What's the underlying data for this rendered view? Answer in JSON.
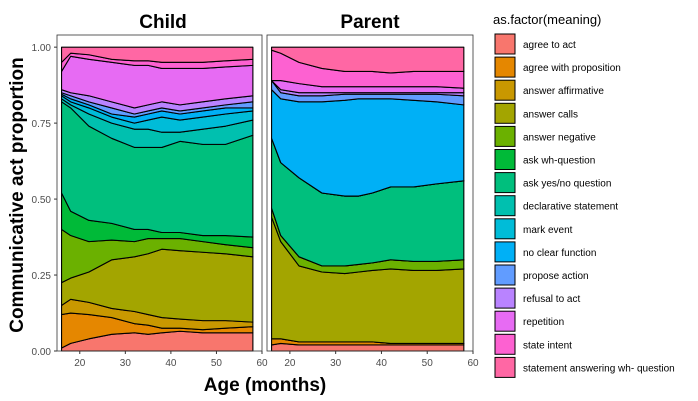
{
  "chart_data": {
    "type": "area",
    "stacked": true,
    "normalized": true,
    "facets": [
      "Child",
      "Parent"
    ],
    "xlabel": "Age (months)",
    "ylabel": "Communicative act proportion",
    "xlim": [
      15,
      60
    ],
    "ylim": [
      0,
      1.04
    ],
    "xticks": [
      20,
      30,
      40,
      50,
      60
    ],
    "yticks": [
      0.0,
      0.25,
      0.5,
      0.75,
      1.0
    ],
    "ytick_labels": [
      "0.00",
      "0.25",
      "0.50",
      "0.75",
      "1.00"
    ],
    "legend_title": "as.factor(meaning)",
    "legend_position": "right",
    "grid": false,
    "categories": [
      {
        "name": "agree to act",
        "color": "#F8766D"
      },
      {
        "name": "agree with proposition",
        "color": "#E58700"
      },
      {
        "name": "answer affirmative",
        "color": "#C99800"
      },
      {
        "name": "answer calls",
        "color": "#A3A500"
      },
      {
        "name": "answer negative",
        "color": "#6BB100"
      },
      {
        "name": "ask wh-question",
        "color": "#00BA38"
      },
      {
        "name": "ask yes/no question",
        "color": "#00BF7D"
      },
      {
        "name": "declarative statement",
        "color": "#00C0AF"
      },
      {
        "name": "mark event",
        "color": "#00BCD8"
      },
      {
        "name": "no clear function",
        "color": "#00B0F6"
      },
      {
        "name": "propose action",
        "color": "#619CFF"
      },
      {
        "name": "refusal to act",
        "color": "#B983FF"
      },
      {
        "name": "repetition",
        "color": "#E76BF3"
      },
      {
        "name": "state intent",
        "color": "#FD61D1"
      },
      {
        "name": "statement answering wh- question",
        "color": "#FF67A4"
      }
    ],
    "x": [
      16,
      18,
      22,
      27,
      32,
      35,
      38,
      42,
      47,
      52,
      58
    ],
    "panels": [
      {
        "facet": "Child",
        "boundaries": [
          [
            0.01,
            0.02,
            0.03,
            0.03,
            0.035,
            0.035,
            0.035,
            0.04,
            0.035,
            0.04,
            0.04
          ],
          [
            0.01,
            0.025,
            0.04,
            0.055,
            0.06,
            0.055,
            0.06,
            0.065,
            0.06,
            0.06,
            0.06
          ],
          [
            0.12,
            0.125,
            0.12,
            0.11,
            0.09,
            0.085,
            0.075,
            0.075,
            0.07,
            0.075,
            0.08
          ],
          [
            0.15,
            0.17,
            0.16,
            0.14,
            0.13,
            0.12,
            0.11,
            0.105,
            0.1,
            0.1,
            0.095
          ],
          [
            0.225,
            0.24,
            0.26,
            0.3,
            0.31,
            0.32,
            0.335,
            0.33,
            0.325,
            0.32,
            0.31
          ],
          [
            0.4,
            0.38,
            0.36,
            0.365,
            0.36,
            0.37,
            0.37,
            0.37,
            0.36,
            0.35,
            0.34
          ],
          [
            0.52,
            0.46,
            0.43,
            0.42,
            0.4,
            0.4,
            0.39,
            0.39,
            0.38,
            0.38,
            0.375
          ],
          [
            0.82,
            0.8,
            0.74,
            0.7,
            0.67,
            0.67,
            0.67,
            0.69,
            0.68,
            0.68,
            0.71
          ],
          [
            0.83,
            0.81,
            0.78,
            0.75,
            0.73,
            0.73,
            0.72,
            0.72,
            0.73,
            0.74,
            0.76
          ],
          [
            0.84,
            0.82,
            0.8,
            0.77,
            0.75,
            0.76,
            0.77,
            0.76,
            0.77,
            0.78,
            0.79
          ],
          [
            0.845,
            0.83,
            0.81,
            0.78,
            0.77,
            0.78,
            0.79,
            0.78,
            0.79,
            0.8,
            0.8
          ],
          [
            0.85,
            0.84,
            0.82,
            0.8,
            0.78,
            0.79,
            0.8,
            0.79,
            0.8,
            0.81,
            0.82
          ],
          [
            0.86,
            0.85,
            0.84,
            0.82,
            0.8,
            0.81,
            0.82,
            0.81,
            0.82,
            0.83,
            0.84
          ],
          [
            0.92,
            0.97,
            0.96,
            0.95,
            0.94,
            0.94,
            0.93,
            0.93,
            0.93,
            0.935,
            0.94
          ],
          [
            0.95,
            0.98,
            0.975,
            0.96,
            0.955,
            0.955,
            0.95,
            0.95,
            0.95,
            0.955,
            0.96
          ]
        ]
      },
      {
        "facet": "Parent",
        "boundaries": [
          [
            0.02,
            0.025,
            0.02,
            0.02,
            0.02,
            0.02,
            0.02,
            0.02,
            0.02,
            0.02,
            0.02
          ],
          [
            0.02,
            0.025,
            0.02,
            0.02,
            0.02,
            0.02,
            0.02,
            0.02,
            0.02,
            0.02,
            0.02
          ],
          [
            0.04,
            0.04,
            0.03,
            0.03,
            0.03,
            0.03,
            0.03,
            0.025,
            0.025,
            0.025,
            0.025
          ],
          [
            0.04,
            0.04,
            0.03,
            0.03,
            0.03,
            0.03,
            0.03,
            0.025,
            0.025,
            0.025,
            0.025
          ],
          [
            0.44,
            0.36,
            0.28,
            0.26,
            0.255,
            0.26,
            0.265,
            0.27,
            0.265,
            0.265,
            0.27
          ],
          [
            0.47,
            0.38,
            0.31,
            0.28,
            0.28,
            0.285,
            0.29,
            0.3,
            0.295,
            0.295,
            0.3
          ],
          [
            0.47,
            0.38,
            0.31,
            0.28,
            0.28,
            0.285,
            0.29,
            0.3,
            0.295,
            0.295,
            0.3
          ],
          [
            0.7,
            0.62,
            0.57,
            0.52,
            0.51,
            0.51,
            0.52,
            0.54,
            0.54,
            0.55,
            0.56
          ],
          [
            0.7,
            0.62,
            0.57,
            0.52,
            0.51,
            0.51,
            0.52,
            0.54,
            0.54,
            0.55,
            0.56
          ],
          [
            0.7,
            0.62,
            0.57,
            0.52,
            0.51,
            0.51,
            0.52,
            0.54,
            0.54,
            0.55,
            0.56
          ],
          [
            0.86,
            0.83,
            0.82,
            0.82,
            0.825,
            0.83,
            0.83,
            0.83,
            0.825,
            0.82,
            0.81
          ],
          [
            0.89,
            0.85,
            0.84,
            0.84,
            0.845,
            0.845,
            0.845,
            0.845,
            0.845,
            0.845,
            0.84
          ],
          [
            0.89,
            0.86,
            0.85,
            0.85,
            0.85,
            0.85,
            0.85,
            0.85,
            0.85,
            0.85,
            0.85
          ],
          [
            0.89,
            0.89,
            0.88,
            0.87,
            0.87,
            0.87,
            0.87,
            0.87,
            0.87,
            0.87,
            0.865
          ],
          [
            0.99,
            0.98,
            0.95,
            0.93,
            0.92,
            0.92,
            0.92,
            0.915,
            0.92,
            0.92,
            0.92
          ]
        ]
      }
    ]
  }
}
